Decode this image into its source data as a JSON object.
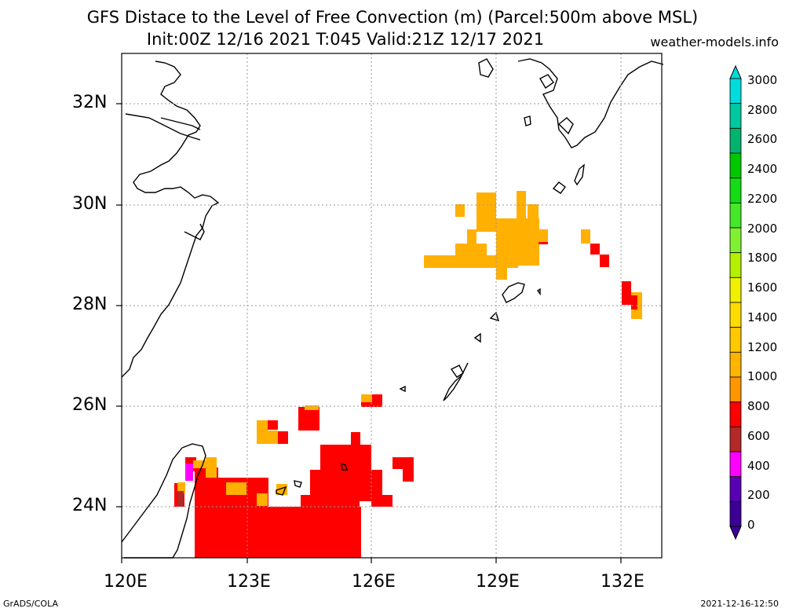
{
  "title": {
    "line1": "GFS Distace to the Level of Free Convection (m) (Parcel:500m above MSL)",
    "line2": "Init:00Z 12/16 2021 T:045 Valid:21Z 12/17 2021",
    "site": "weather-models.info"
  },
  "axes": {
    "lat_labels": [
      "32N",
      "30N",
      "28N",
      "26N",
      "24N"
    ],
    "lon_labels": [
      "120E",
      "123E",
      "126E",
      "129E",
      "132E"
    ]
  },
  "colorbar": {
    "labels": [
      "3000",
      "2800",
      "2600",
      "2400",
      "2200",
      "2000",
      "1800",
      "1600",
      "1400",
      "1200",
      "1000",
      "800",
      "600",
      "400",
      "200",
      "0"
    ],
    "colors": [
      "#00dcdc",
      "#00c8a0",
      "#00b46e",
      "#00c800",
      "#14dc14",
      "#46e628",
      "#82f032",
      "#b4f000",
      "#f0f000",
      "#ffdc00",
      "#ffc800",
      "#ffb400",
      "#ff9600",
      "#ff0000",
      "#b42828",
      "#ff00ff",
      "#5a00b4",
      "#3c0096"
    ]
  },
  "footer": {
    "left": "GrADS/COLA",
    "right": "2021-12-16-12:50"
  },
  "fields": {
    "red": "#ff0000",
    "orange": "#ffb000",
    "magenta": "#ff00ff",
    "brown": "#b42828"
  }
}
